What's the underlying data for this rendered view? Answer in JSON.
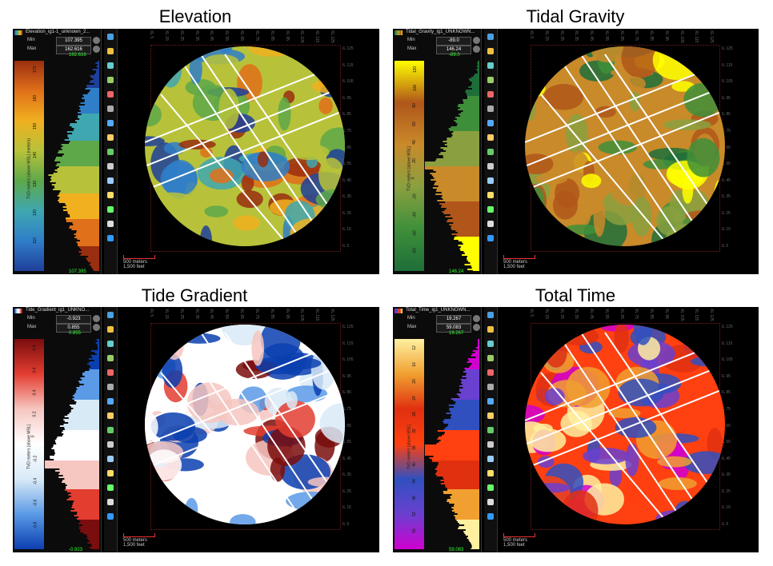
{
  "panels": [
    {
      "title": "Elevation",
      "layer_name": "Elevation_ig1-1_unknown_2...",
      "min_label": "Min",
      "min_value": "107.395",
      "max_label": "Max",
      "max_value": "162.616",
      "hist_top": "162.616",
      "hist_bottom": "107.395",
      "ramp_label": "TVD meters [above MSL] (meters)",
      "ramp_ticks": [
        "170",
        "160",
        "150",
        "140",
        "130",
        "120",
        "110"
      ],
      "scale_meters": "500 meters",
      "scale_feet": "1,500 feet",
      "top_ticks": [
        "XL 5",
        "XL 15",
        "XL 25",
        "XL 35",
        "XL 45",
        "XL 55",
        "XL 65",
        "XL 75",
        "XL 85",
        "XL 95",
        "XL 105",
        "XL 115",
        "XL 125"
      ],
      "right_ticks": [
        "IL 125",
        "IL 115",
        "IL 105",
        "IL 95",
        "IL 85",
        "IL 75",
        "IL 65",
        "IL 55",
        "IL 45",
        "IL 35",
        "IL 25",
        "IL 15",
        "IL 5"
      ]
    },
    {
      "title": "Tidal Gravity",
      "layer_name": "Tidal_Gravity_ig1_UNKNOWN...",
      "min_label": "Min",
      "min_value": "-89.0",
      "max_label": "Max",
      "max_value": "146.24",
      "hist_top": "-89.0",
      "hist_bottom": "146.24",
      "ramp_label": "TVD meters [above MSL]",
      "ramp_ticks": [
        "120",
        "100",
        "80",
        "60",
        "40",
        "20",
        "0",
        "-20",
        "-40",
        "-60",
        "-80"
      ],
      "scale_meters": "500 meters",
      "scale_feet": "1,500 feet",
      "top_ticks": [
        "XL 5",
        "XL 15",
        "XL 25",
        "XL 35",
        "XL 45",
        "XL 55",
        "XL 65",
        "XL 75",
        "XL 85",
        "XL 95",
        "XL 105",
        "XL 115",
        "XL 125"
      ],
      "right_ticks": [
        "IL 125",
        "IL 115",
        "IL 105",
        "IL 95",
        "IL 85",
        "IL 75",
        "IL 65",
        "IL 55",
        "IL 45",
        "IL 35",
        "IL 25",
        "IL 15",
        "IL 5"
      ]
    },
    {
      "title": "Tide Gradient",
      "layer_name": "Tide_Gradient_ig1_UNKNO...",
      "min_label": "Min",
      "min_value": "-0.923",
      "max_label": "Max",
      "max_value": "0.855",
      "hist_top": "0.855",
      "hist_bottom": "-0.923",
      "ramp_label": "TVD meters [above MSL]",
      "ramp_ticks": [
        "0.8",
        "0.6",
        "0.4",
        "0.2",
        "0",
        "-0.2",
        "-0.4",
        "-0.6",
        "-0.8"
      ],
      "scale_meters": "500 meters",
      "scale_feet": "1,500 feet",
      "top_ticks": [
        "XL 5",
        "XL 15",
        "XL 25",
        "XL 35",
        "XL 45",
        "XL 55",
        "XL 65",
        "XL 75",
        "XL 85",
        "XL 95",
        "XL 105",
        "XL 115",
        "XL 125"
      ],
      "right_ticks": [
        "IL 125",
        "IL 115",
        "IL 105",
        "IL 95",
        "IL 85",
        "IL 75",
        "IL 65",
        "IL 55",
        "IL 45",
        "IL 35",
        "IL 25",
        "IL 15",
        "IL 5"
      ]
    },
    {
      "title": "Total Time",
      "layer_name": "Total_Time_ig1_UNKNOWN...",
      "min_label": "Min",
      "min_value": "19.267",
      "max_label": "Max",
      "max_value": "59.083",
      "hist_top": "19.267",
      "hist_bottom": "59.083",
      "ramp_label": "TVD meters [above MSL]",
      "ramp_ticks": [
        "12",
        "16",
        "20",
        "24",
        "28",
        "32",
        "36",
        "40",
        "44",
        "48",
        "52",
        "56"
      ],
      "scale_meters": "500 meters",
      "scale_feet": "1,500 feet",
      "top_ticks": [
        "XL 5",
        "XL 15",
        "XL 25",
        "XL 35",
        "XL 45",
        "XL 55",
        "XL 65",
        "XL 75",
        "XL 85",
        "XL 95",
        "XL 105",
        "XL 115",
        "XL 125"
      ],
      "right_ticks": [
        "IL 125",
        "IL 115",
        "IL 105",
        "IL 95",
        "IL 85",
        "IL 75",
        "IL 65",
        "IL 55",
        "IL 45",
        "IL 35",
        "IL 25",
        "IL 15",
        "IL 5"
      ]
    }
  ],
  "colors": {
    "elevation": [
      "#1f3f9a",
      "#2f7ec8",
      "#3fa7b0",
      "#5ea84a",
      "#b7c23a",
      "#f0b020",
      "#e0701a",
      "#9a2e10"
    ],
    "tidal_gravity": [
      "#1e6e3a",
      "#3f8f3a",
      "#8aa040",
      "#c98a2a",
      "#b0561a",
      "#ffff00"
    ],
    "tide_gradient": [
      "#0b3fb0",
      "#5a9ae6",
      "#d9eaf7",
      "#ffffff",
      "#f6c6c0",
      "#e33d30",
      "#7a0d0d"
    ],
    "total_time": [
      "#d000d0",
      "#6a40d0",
      "#3050c0",
      "#ff4010",
      "#e03010",
      "#f0a030",
      "#fff0a0"
    ]
  }
}
